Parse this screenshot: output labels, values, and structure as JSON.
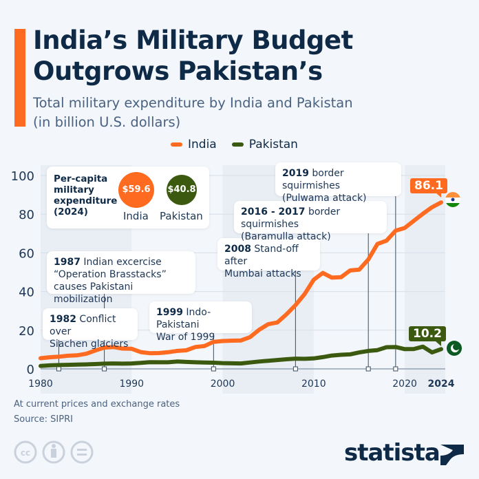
{
  "header": {
    "title_line1": "India’s Military Budget",
    "title_line2": "Outgrows Pakistan’s",
    "subtitle_line1": "Total military expenditure by India and Pakistan",
    "subtitle_line2": "(in billion U.S. dollars)"
  },
  "colors": {
    "india": "#fe6a1f",
    "pakistan": "#3b5a10",
    "accent": "#fe6a1f",
    "text": "#0e2a47"
  },
  "chart_data": {
    "type": "line",
    "title": "India’s Military Budget Outgrows Pakistan’s",
    "subtitle": "Total military expenditure by India and Pakistan (in billion U.S. dollars)",
    "xlim": [
      1980,
      2024
    ],
    "ylim": [
      0,
      100
    ],
    "x_ticks": [
      "1980",
      "1990",
      "2000",
      "2010",
      "2020",
      "2024"
    ],
    "y_ticks": [
      "0",
      "20",
      "40",
      "60",
      "80",
      "100"
    ],
    "grid": true,
    "legend": "top-center",
    "x": [
      1980,
      1981,
      1982,
      1983,
      1984,
      1985,
      1986,
      1987,
      1988,
      1989,
      1990,
      1991,
      1992,
      1993,
      1994,
      1995,
      1996,
      1997,
      1998,
      1999,
      2000,
      2001,
      2002,
      2003,
      2004,
      2005,
      2006,
      2007,
      2008,
      2009,
      2010,
      2011,
      2012,
      2013,
      2014,
      2015,
      2016,
      2017,
      2018,
      2019,
      2020,
      2021,
      2022,
      2023,
      2024
    ],
    "series": [
      {
        "name": "India",
        "values": [
          5.5,
          6.0,
          6.3,
          6.8,
          7.0,
          7.8,
          9.5,
          11.0,
          11.3,
          10.5,
          10.4,
          8.7,
          8.1,
          8.2,
          8.6,
          9.3,
          9.6,
          11.3,
          11.8,
          14.0,
          14.4,
          14.6,
          14.7,
          16.4,
          20.2,
          23.1,
          24.0,
          28.2,
          33.0,
          38.7,
          46.1,
          49.6,
          47.2,
          47.4,
          50.9,
          51.3,
          56.6,
          64.6,
          66.3,
          71.5,
          72.9,
          76.6,
          80.2,
          83.6,
          86.1
        ]
      },
      {
        "name": "Pakistan",
        "values": [
          1.5,
          1.8,
          2.0,
          2.1,
          2.2,
          2.3,
          2.5,
          2.7,
          2.8,
          2.7,
          2.8,
          3.1,
          3.5,
          3.4,
          3.4,
          3.8,
          3.6,
          3.4,
          3.3,
          3.2,
          3.0,
          2.9,
          2.8,
          3.3,
          3.8,
          4.2,
          4.6,
          5.0,
          5.3,
          5.2,
          5.4,
          6.1,
          6.9,
          7.3,
          7.5,
          8.5,
          9.3,
          9.7,
          11.2,
          11.3,
          10.2,
          10.3,
          11.5,
          8.5,
          10.2
        ]
      }
    ],
    "end_labels": {
      "india": "86.1",
      "pakistan": "10.2"
    },
    "annotations": [
      {
        "year": 1982,
        "bold": "1982",
        "text": "Conflict over Siachen glaciers"
      },
      {
        "year": 1987,
        "bold": "1987",
        "text": "Indian excercise “Operation Brasstacks” causes Pakistani mobilization"
      },
      {
        "year": 1999,
        "bold": "1999",
        "text": "Indo-Pakistani War of 1999"
      },
      {
        "year": 2008,
        "bold": "2008",
        "text": "Stand-off after Mumbai attacks"
      },
      {
        "year": 2016,
        "bold": "2016 - 2017",
        "text": "border squirmishes (Baramulla attack)"
      },
      {
        "year": 2019,
        "bold": "2019",
        "text": "border squirmishes (Pulwama attack)"
      }
    ]
  },
  "legend": {
    "india": "India",
    "pakistan": "Pakistan"
  },
  "per_capita": {
    "title_l1": "Per-capita",
    "title_l2": "military",
    "title_l3": "expenditure",
    "title_l4": "(2024)",
    "india_value": "$59.6",
    "india_label": "India",
    "pakistan_value": "$40.8",
    "pakistan_label": "Pakistan"
  },
  "annot_text": {
    "a1982_b": "1982",
    "a1982_l1": "Conflict over",
    "a1982_l2": "Siachen glaciers",
    "a1987_b": "1987",
    "a1987_l1": "Indian excercise",
    "a1987_l2": "“Operation Brasstacks”",
    "a1987_l3": "causes Pakistani mobilization",
    "a1999_b": "1999",
    "a1999_l1": "Indo-Pakistani",
    "a1999_l2": "War of 1999",
    "a2008_b": "2008",
    "a2008_l1": "Stand-off after",
    "a2008_l2": "Mumbai attacks",
    "a2016_b": "2016 - 2017",
    "a2016_l1": "border squirmishes",
    "a2016_l2": "(Baramulla attack)",
    "a2019_b": "2019",
    "a2019_l1": "border squirmishes",
    "a2019_l2": "(Pulwama attack)"
  },
  "footer": {
    "note": "At current prices and exchange rates",
    "source": "Source: SIPRI",
    "logo": "statista"
  },
  "icons": [
    "cc-icon",
    "by-icon",
    "nd-icon",
    "india-flag-icon",
    "pakistan-flag-icon",
    "statista-logo-icon"
  ]
}
